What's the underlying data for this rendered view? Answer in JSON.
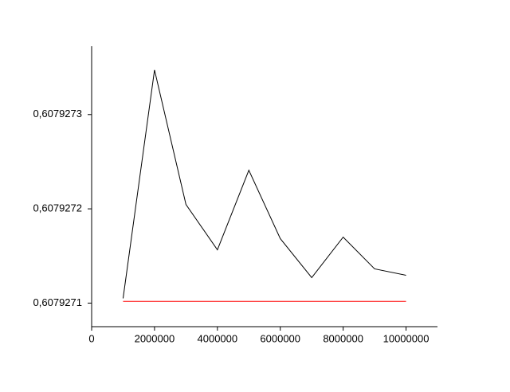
{
  "chart_data": {
    "type": "line",
    "x": [
      1000000,
      2000000,
      3000000,
      4000000,
      5000000,
      6000000,
      7000000,
      8000000,
      9000000,
      10000000
    ],
    "series": [
      {
        "color": "#000000",
        "values": [
          0.607927105,
          0.6079273473,
          0.6079272046,
          0.6079271565,
          0.6079272409,
          0.6079271684,
          0.607927127,
          0.60792717,
          0.6079271363,
          0.6079271295
        ]
      },
      {
        "color": "#ff0000",
        "values": [
          0.6079271018540267,
          0.6079271018540267,
          0.6079271018540267,
          0.6079271018540267,
          0.6079271018540267,
          0.6079271018540267,
          0.6079271018540267,
          0.6079271018540267,
          0.6079271018540267,
          0.6079271018540267
        ]
      }
    ],
    "xlim": [
      0,
      11000000
    ],
    "xticks": [
      0,
      2000000,
      4000000,
      6000000,
      8000000,
      10000000
    ],
    "ylim": [
      0.607927075,
      0.6079273725
    ],
    "yticks": [
      {
        "value": 0.6079271,
        "label": "0,6079271"
      },
      {
        "value": 0.6079272,
        "label": "0,6079272"
      },
      {
        "value": 0.6079273,
        "label": "0,6079273"
      }
    ]
  }
}
